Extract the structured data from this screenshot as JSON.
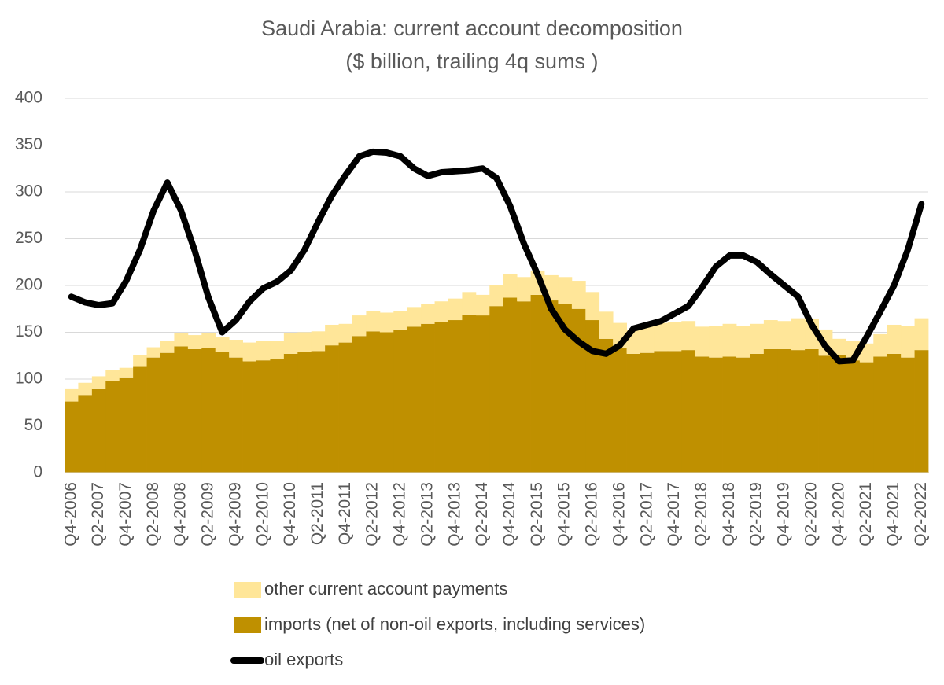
{
  "chart_data": {
    "type": "bar",
    "title": "Saudi Arabia: current account decomposition",
    "subtitle": "($ billion, trailing 4q sums )",
    "categories": [
      "Q4-2006",
      null,
      "Q2-2007",
      null,
      "Q4-2007",
      null,
      "Q2-2008",
      null,
      "Q4-2008",
      null,
      "Q2-2009",
      null,
      "Q4-2009",
      null,
      "Q2-2010",
      null,
      "Q4-2010",
      null,
      "Q2-2011",
      null,
      "Q4-2011",
      null,
      "Q2-2012",
      null,
      "Q4-2012",
      null,
      "Q2-2013",
      null,
      "Q4-2013",
      null,
      "Q2-2014",
      null,
      "Q4-2014",
      null,
      "Q2-2015",
      null,
      "Q4-2015",
      null,
      "Q2-2016",
      null,
      "Q4-2016",
      null,
      "Q2-2017",
      null,
      "Q4-2017",
      null,
      "Q2-2018",
      null,
      "Q4-2018",
      null,
      "Q2-2019",
      null,
      "Q4-2019",
      null,
      "Q2-2020",
      null,
      "Q4-2020",
      null,
      "Q2-2021",
      null,
      "Q4-2021",
      null,
      "Q2-2022"
    ],
    "series": [
      {
        "name": "other current account payments",
        "type": "bar",
        "color": "#ffe699",
        "values": [
          14,
          13,
          13,
          12,
          11,
          13,
          11,
          13,
          14,
          15,
          16,
          16,
          19,
          20,
          21,
          20,
          22,
          21,
          21,
          22,
          20,
          22,
          22,
          21,
          20,
          21,
          21,
          22,
          23,
          24,
          22,
          22,
          25,
          26,
          26,
          27,
          29,
          30,
          30,
          29,
          27,
          26,
          30,
          30,
          31,
          31,
          32,
          34,
          35,
          34,
          32,
          31,
          30,
          34,
          32,
          28,
          17,
          21,
          20,
          24,
          31,
          34,
          34
        ]
      },
      {
        "name": "imports (net of non-oil exports, including services)",
        "type": "bar",
        "color": "#bf9000",
        "values": [
          76,
          83,
          90,
          98,
          101,
          113,
          123,
          128,
          135,
          132,
          133,
          129,
          123,
          119,
          120,
          121,
          127,
          129,
          130,
          136,
          139,
          146,
          151,
          150,
          153,
          156,
          159,
          161,
          163,
          169,
          168,
          178,
          187,
          183,
          190,
          184,
          180,
          175,
          163,
          143,
          133,
          127,
          128,
          130,
          130,
          131,
          124,
          123,
          124,
          123,
          127,
          132,
          132,
          131,
          132,
          125,
          126,
          120,
          118,
          124,
          127,
          123,
          131
        ]
      },
      {
        "name": "oil exports",
        "type": "line",
        "color": "#000000",
        "values": [
          188,
          182,
          179,
          181,
          205,
          238,
          280,
          310,
          280,
          237,
          187,
          150,
          163,
          183,
          197,
          204,
          216,
          238,
          268,
          296,
          318,
          338,
          343,
          342,
          338,
          325,
          317,
          321,
          322,
          323,
          325,
          315,
          285,
          245,
          212,
          175,
          153,
          140,
          130,
          127,
          136,
          154,
          158,
          162,
          170,
          178,
          198,
          220,
          232,
          232,
          225,
          212,
          200,
          188,
          158,
          135,
          119,
          120,
          145,
          172,
          200,
          238,
          287
        ]
      }
    ],
    "ylim": [
      0,
      400
    ],
    "yticks": [
      0,
      50,
      100,
      150,
      200,
      250,
      300,
      350,
      400
    ],
    "grid": true
  }
}
